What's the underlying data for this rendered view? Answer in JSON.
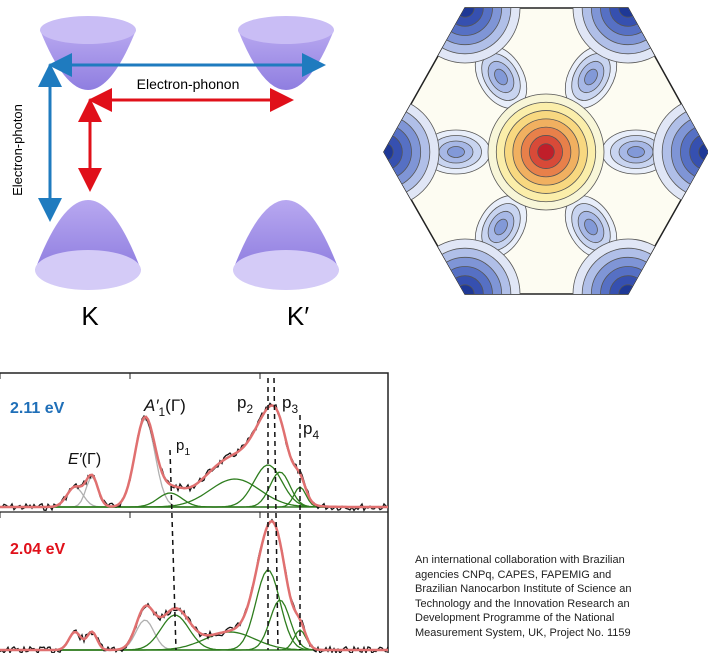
{
  "diagram": {
    "arrow_phonon": "Electron-phonon",
    "arrow_photon": "Electron-photon",
    "valley_left": "K",
    "valley_right": "K′"
  },
  "spectra": {
    "panels": [
      {
        "label": "2.11 eV"
      },
      {
        "label": "2.04 eV"
      }
    ],
    "peaks": [
      {
        "base": "A′",
        "sub": "1",
        "suffix": "(Γ)"
      },
      {
        "base": "E′",
        "suffix": "(Γ)"
      },
      {
        "base": "p",
        "sub": "1"
      },
      {
        "base": "p",
        "sub": "2"
      },
      {
        "base": "p",
        "sub": "3"
      },
      {
        "base": "p",
        "sub": "4"
      }
    ]
  },
  "caption": {
    "lines": [
      "An international collaboration with Brazilian",
      "agencies CNPq,  CAPES,  FAPEMIG  and",
      "Brazilian Nanocarbon Institute of Science an",
      "Technology and the Innovation Research an",
      "Development Programme of the National",
      "Measurement System, UK, Project No. 1159"
    ]
  }
}
